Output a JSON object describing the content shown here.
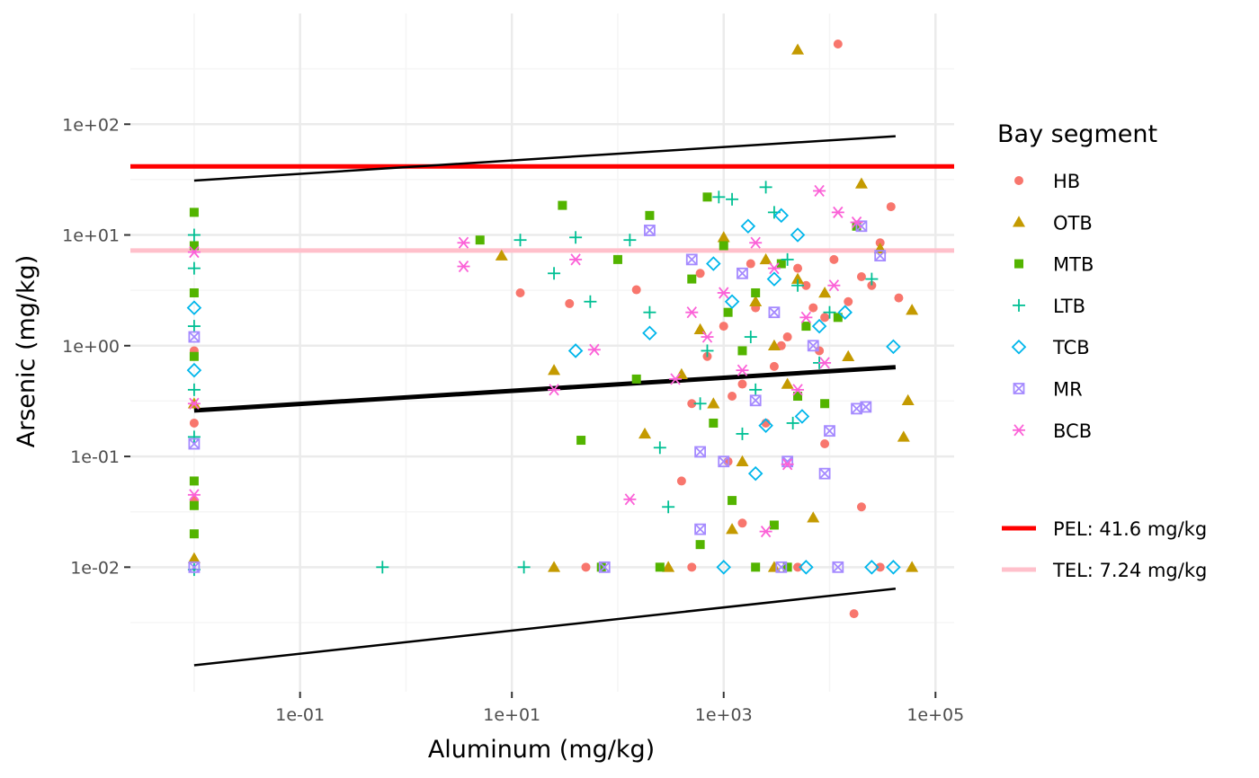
{
  "chart_data": {
    "type": "scatter",
    "xlabel": "Aluminum (mg/kg)",
    "ylabel": "Arsenic (mg/kg)",
    "x_scale": "log10",
    "y_scale": "log10",
    "xlim": [
      0.0025,
      150000
    ],
    "ylim": [
      0.00075,
      1000
    ],
    "x_ticks": [
      {
        "value": 0.1,
        "label": "1e-01"
      },
      {
        "value": 10,
        "label": "1e+01"
      },
      {
        "value": 1000,
        "label": "1e+03"
      },
      {
        "value": 100000,
        "label": "1e+05"
      }
    ],
    "y_ticks": [
      {
        "value": 0.01,
        "label": "1e-02"
      },
      {
        "value": 0.1,
        "label": "1e-01"
      },
      {
        "value": 1,
        "label": "1e+00"
      },
      {
        "value": 10,
        "label": "1e+01"
      },
      {
        "value": 100,
        "label": "1e+02"
      }
    ],
    "grid": true,
    "legend_position": "right",
    "legend_title": "Bay segment",
    "series": [
      {
        "name": "HB",
        "color": "#F8766D",
        "shape": "circle"
      },
      {
        "name": "OTB",
        "color": "#C49A00",
        "shape": "triangle"
      },
      {
        "name": "MTB",
        "color": "#53B400",
        "shape": "square"
      },
      {
        "name": "LTB",
        "color": "#00C094",
        "shape": "plus"
      },
      {
        "name": "TCB",
        "color": "#00B6EB",
        "shape": "diamond"
      },
      {
        "name": "MR",
        "color": "#A58AFF",
        "shape": "boxx"
      },
      {
        "name": "BCB",
        "color": "#FB61D7",
        "shape": "asterisk"
      }
    ],
    "reference_lines": [
      {
        "label": "PEL: 41.6 mg/kg",
        "y": 41.6,
        "color": "#FF0000"
      },
      {
        "label": "TEL: 7.24 mg/kg",
        "y": 7.24,
        "color": "#FFC0CB"
      }
    ],
    "regression": {
      "x_range": [
        0.01,
        42000
      ],
      "fit": [
        0.26,
        0.64
      ],
      "upper": [
        31,
        78
      ],
      "lower": [
        0.0013,
        0.0064
      ]
    },
    "points": [
      {
        "s": "HB",
        "x": 12000,
        "y": 530
      },
      {
        "s": "OTB",
        "x": 5000,
        "y": 470
      },
      {
        "s": "HB",
        "x": 38000,
        "y": 18
      },
      {
        "s": "HB",
        "x": 30000,
        "y": 8.5
      },
      {
        "s": "HB",
        "x": 20000,
        "y": 4.2
      },
      {
        "s": "HB",
        "x": 15000,
        "y": 2.5
      },
      {
        "s": "HB",
        "x": 9000,
        "y": 1.8
      },
      {
        "s": "HB",
        "x": 6000,
        "y": 3.5
      },
      {
        "s": "HB",
        "x": 4000,
        "y": 1.2
      },
      {
        "s": "HB",
        "x": 3000,
        "y": 0.65
      },
      {
        "s": "HB",
        "x": 2000,
        "y": 2.2
      },
      {
        "s": "HB",
        "x": 1500,
        "y": 0.45
      },
      {
        "s": "HB",
        "x": 1000,
        "y": 1.5
      },
      {
        "s": "HB",
        "x": 700,
        "y": 0.8
      },
      {
        "s": "HB",
        "x": 500,
        "y": 0.3
      },
      {
        "s": "HB",
        "x": 400,
        "y": 0.06
      },
      {
        "s": "HB",
        "x": 12,
        "y": 3.0
      },
      {
        "s": "HB",
        "x": 35,
        "y": 2.4
      },
      {
        "s": "HB",
        "x": 150,
        "y": 3.2
      },
      {
        "s": "HB",
        "x": 1500,
        "y": 0.025
      },
      {
        "s": "HB",
        "x": 20000,
        "y": 0.035
      },
      {
        "s": "HB",
        "x": 17000,
        "y": 0.0038
      },
      {
        "s": "HB",
        "x": 9000,
        "y": 0.13
      },
      {
        "s": "HB",
        "x": 2500,
        "y": 0.2
      },
      {
        "s": "HB",
        "x": 5000,
        "y": 5.0
      },
      {
        "s": "HB",
        "x": 8000,
        "y": 0.9
      },
      {
        "s": "HB",
        "x": 25000,
        "y": 3.5
      },
      {
        "s": "HB",
        "x": 11000,
        "y": 6.0
      },
      {
        "s": "HB",
        "x": 3500,
        "y": 1.0
      },
      {
        "s": "HB",
        "x": 1800,
        "y": 5.5
      },
      {
        "s": "HB",
        "x": 1200,
        "y": 0.35
      },
      {
        "s": "HB",
        "x": 45000,
        "y": 2.7
      },
      {
        "s": "HB",
        "x": 600,
        "y": 4.5
      },
      {
        "s": "HB",
        "x": 0.01,
        "y": 0.9
      },
      {
        "s": "HB",
        "x": 0.01,
        "y": 0.2
      },
      {
        "s": "HB",
        "x": 0.01,
        "y": 0.04
      },
      {
        "s": "HB",
        "x": 50,
        "y": 0.01
      },
      {
        "s": "HB",
        "x": 500,
        "y": 0.01
      },
      {
        "s": "HB",
        "x": 5000,
        "y": 0.01
      },
      {
        "s": "HB",
        "x": 30000,
        "y": 0.01
      },
      {
        "s": "HB",
        "x": 1100,
        "y": 0.09
      },
      {
        "s": "HB",
        "x": 7000,
        "y": 2.2
      },
      {
        "s": "OTB",
        "x": 20000,
        "y": 29
      },
      {
        "s": "OTB",
        "x": 8,
        "y": 6.5
      },
      {
        "s": "OTB",
        "x": 0.01,
        "y": 0.012
      },
      {
        "s": "OTB",
        "x": 25,
        "y": 0.6
      },
      {
        "s": "OTB",
        "x": 180,
        "y": 0.16
      },
      {
        "s": "OTB",
        "x": 3000,
        "y": 1.0
      },
      {
        "s": "OTB",
        "x": 1000,
        "y": 9.5
      },
      {
        "s": "OTB",
        "x": 5000,
        "y": 4.0
      },
      {
        "s": "OTB",
        "x": 15000,
        "y": 0.8
      },
      {
        "s": "OTB",
        "x": 55000,
        "y": 0.32
      },
      {
        "s": "OTB",
        "x": 50000,
        "y": 0.15
      },
      {
        "s": "OTB",
        "x": 30000,
        "y": 7.5
      },
      {
        "s": "OTB",
        "x": 800,
        "y": 0.3
      },
      {
        "s": "OTB",
        "x": 1200,
        "y": 0.022
      },
      {
        "s": "OTB",
        "x": 7000,
        "y": 0.028
      },
      {
        "s": "OTB",
        "x": 2000,
        "y": 2.5
      },
      {
        "s": "OTB",
        "x": 600,
        "y": 1.4
      },
      {
        "s": "OTB",
        "x": 400,
        "y": 0.55
      },
      {
        "s": "OTB",
        "x": 9000,
        "y": 3.0
      },
      {
        "s": "OTB",
        "x": 4000,
        "y": 0.45
      },
      {
        "s": "OTB",
        "x": 25,
        "y": 0.01
      },
      {
        "s": "OTB",
        "x": 300,
        "y": 0.01
      },
      {
        "s": "OTB",
        "x": 3000,
        "y": 0.01
      },
      {
        "s": "OTB",
        "x": 60000,
        "y": 0.01
      },
      {
        "s": "OTB",
        "x": 0.01,
        "y": 0.3
      },
      {
        "s": "OTB",
        "x": 60000,
        "y": 2.1
      },
      {
        "s": "OTB",
        "x": 1500,
        "y": 0.09
      },
      {
        "s": "OTB",
        "x": 2500,
        "y": 6.0
      },
      {
        "s": "MTB",
        "x": 0.01,
        "y": 16
      },
      {
        "s": "MTB",
        "x": 0.01,
        "y": 8
      },
      {
        "s": "MTB",
        "x": 0.01,
        "y": 3
      },
      {
        "s": "MTB",
        "x": 0.01,
        "y": 0.8
      },
      {
        "s": "MTB",
        "x": 0.01,
        "y": 0.06
      },
      {
        "s": "MTB",
        "x": 0.01,
        "y": 0.02
      },
      {
        "s": "MTB",
        "x": 0.01,
        "y": 0.036
      },
      {
        "s": "MTB",
        "x": 30,
        "y": 18.5
      },
      {
        "s": "MTB",
        "x": 5,
        "y": 9.0
      },
      {
        "s": "MTB",
        "x": 45,
        "y": 0.14
      },
      {
        "s": "MTB",
        "x": 200,
        "y": 15
      },
      {
        "s": "MTB",
        "x": 700,
        "y": 22
      },
      {
        "s": "MTB",
        "x": 1000,
        "y": 8.0
      },
      {
        "s": "MTB",
        "x": 1200,
        "y": 0.04
      },
      {
        "s": "MTB",
        "x": 600,
        "y": 0.016
      },
      {
        "s": "MTB",
        "x": 3000,
        "y": 0.024
      },
      {
        "s": "MTB",
        "x": 2000,
        "y": 3.0
      },
      {
        "s": "MTB",
        "x": 1500,
        "y": 0.9
      },
      {
        "s": "MTB",
        "x": 800,
        "y": 0.2
      },
      {
        "s": "MTB",
        "x": 500,
        "y": 4.0
      },
      {
        "s": "MTB",
        "x": 150,
        "y": 0.5
      },
      {
        "s": "MTB",
        "x": 100,
        "y": 6.0
      },
      {
        "s": "MTB",
        "x": 12000,
        "y": 1.8
      },
      {
        "s": "MTB",
        "x": 5000,
        "y": 0.35
      },
      {
        "s": "MTB",
        "x": 9000,
        "y": 0.3
      },
      {
        "s": "MTB",
        "x": 18000,
        "y": 12
      },
      {
        "s": "MTB",
        "x": 70,
        "y": 0.01
      },
      {
        "s": "MTB",
        "x": 250,
        "y": 0.01
      },
      {
        "s": "MTB",
        "x": 2000,
        "y": 0.01
      },
      {
        "s": "MTB",
        "x": 4000,
        "y": 0.01
      },
      {
        "s": "MTB",
        "x": 6000,
        "y": 1.5
      },
      {
        "s": "MTB",
        "x": 1100,
        "y": 2.0
      },
      {
        "s": "MTB",
        "x": 3500,
        "y": 5.5
      },
      {
        "s": "LTB",
        "x": 0.01,
        "y": 10
      },
      {
        "s": "LTB",
        "x": 0.01,
        "y": 5
      },
      {
        "s": "LTB",
        "x": 0.01,
        "y": 1.5
      },
      {
        "s": "LTB",
        "x": 0.01,
        "y": 0.4
      },
      {
        "s": "LTB",
        "x": 0.01,
        "y": 0.15
      },
      {
        "s": "LTB",
        "x": 0.01,
        "y": 0.0095
      },
      {
        "s": "LTB",
        "x": 0.6,
        "y": 0.01
      },
      {
        "s": "LTB",
        "x": 13,
        "y": 0.01
      },
      {
        "s": "LTB",
        "x": 12,
        "y": 9.0
      },
      {
        "s": "LTB",
        "x": 25,
        "y": 4.5
      },
      {
        "s": "LTB",
        "x": 40,
        "y": 9.5
      },
      {
        "s": "LTB",
        "x": 55,
        "y": 2.5
      },
      {
        "s": "LTB",
        "x": 130,
        "y": 9.0
      },
      {
        "s": "LTB",
        "x": 200,
        "y": 2.0
      },
      {
        "s": "LTB",
        "x": 250,
        "y": 0.12
      },
      {
        "s": "LTB",
        "x": 300,
        "y": 0.035
      },
      {
        "s": "LTB",
        "x": 900,
        "y": 22
      },
      {
        "s": "LTB",
        "x": 1200,
        "y": 21
      },
      {
        "s": "LTB",
        "x": 2500,
        "y": 27
      },
      {
        "s": "LTB",
        "x": 3000,
        "y": 16
      },
      {
        "s": "LTB",
        "x": 1500,
        "y": 0.16
      },
      {
        "s": "LTB",
        "x": 700,
        "y": 0.9
      },
      {
        "s": "LTB",
        "x": 5000,
        "y": 3.5
      },
      {
        "s": "LTB",
        "x": 8000,
        "y": 0.7
      },
      {
        "s": "LTB",
        "x": 2000,
        "y": 0.4
      },
      {
        "s": "LTB",
        "x": 600,
        "y": 0.3
      },
      {
        "s": "LTB",
        "x": 4000,
        "y": 6.0
      },
      {
        "s": "LTB",
        "x": 10000,
        "y": 2.0
      },
      {
        "s": "LTB",
        "x": 25000,
        "y": 4.0
      },
      {
        "s": "LTB",
        "x": 1800,
        "y": 1.2
      },
      {
        "s": "LTB",
        "x": 4500,
        "y": 0.2
      },
      {
        "s": "TCB",
        "x": 0.01,
        "y": 2.2
      },
      {
        "s": "TCB",
        "x": 0.01,
        "y": 0.6
      },
      {
        "s": "TCB",
        "x": 40,
        "y": 0.9
      },
      {
        "s": "TCB",
        "x": 200,
        "y": 1.3
      },
      {
        "s": "TCB",
        "x": 1700,
        "y": 12
      },
      {
        "s": "TCB",
        "x": 3500,
        "y": 15
      },
      {
        "s": "TCB",
        "x": 5000,
        "y": 10
      },
      {
        "s": "TCB",
        "x": 2000,
        "y": 0.07
      },
      {
        "s": "TCB",
        "x": 2500,
        "y": 0.19
      },
      {
        "s": "TCB",
        "x": 5500,
        "y": 0.23
      },
      {
        "s": "TCB",
        "x": 3000,
        "y": 4.0
      },
      {
        "s": "TCB",
        "x": 1200,
        "y": 2.5
      },
      {
        "s": "TCB",
        "x": 8000,
        "y": 1.5
      },
      {
        "s": "TCB",
        "x": 40000,
        "y": 0.98
      },
      {
        "s": "TCB",
        "x": 14000,
        "y": 2.0
      },
      {
        "s": "TCB",
        "x": 800,
        "y": 5.5
      },
      {
        "s": "TCB",
        "x": 1000,
        "y": 0.01
      },
      {
        "s": "TCB",
        "x": 6000,
        "y": 0.01
      },
      {
        "s": "TCB",
        "x": 25000,
        "y": 0.01
      },
      {
        "s": "TCB",
        "x": 40000,
        "y": 0.01
      },
      {
        "s": "MR",
        "x": 0.01,
        "y": 1.2
      },
      {
        "s": "MR",
        "x": 0.01,
        "y": 0.13
      },
      {
        "s": "MR",
        "x": 0.01,
        "y": 0.01
      },
      {
        "s": "MR",
        "x": 75,
        "y": 0.01
      },
      {
        "s": "MR",
        "x": 200,
        "y": 11
      },
      {
        "s": "MR",
        "x": 500,
        "y": 6.0
      },
      {
        "s": "MR",
        "x": 600,
        "y": 0.11
      },
      {
        "s": "MR",
        "x": 600,
        "y": 0.022
      },
      {
        "s": "MR",
        "x": 9000,
        "y": 0.07
      },
      {
        "s": "MR",
        "x": 10000,
        "y": 0.17
      },
      {
        "s": "MR",
        "x": 18000,
        "y": 0.27
      },
      {
        "s": "MR",
        "x": 22000,
        "y": 0.28
      },
      {
        "s": "MR",
        "x": 2000,
        "y": 0.32
      },
      {
        "s": "MR",
        "x": 3000,
        "y": 2.0
      },
      {
        "s": "MR",
        "x": 1000,
        "y": 0.09
      },
      {
        "s": "MR",
        "x": 4000,
        "y": 0.09
      },
      {
        "s": "MR",
        "x": 7000,
        "y": 1.0
      },
      {
        "s": "MR",
        "x": 1500,
        "y": 4.5
      },
      {
        "s": "MR",
        "x": 20000,
        "y": 12
      },
      {
        "s": "MR",
        "x": 30000,
        "y": 6.5
      },
      {
        "s": "MR",
        "x": 12000,
        "y": 0.01
      },
      {
        "s": "MR",
        "x": 3500,
        "y": 0.01
      },
      {
        "s": "BCB",
        "x": 0.01,
        "y": 7
      },
      {
        "s": "BCB",
        "x": 0.01,
        "y": 0.3
      },
      {
        "s": "BCB",
        "x": 0.01,
        "y": 0.045
      },
      {
        "s": "BCB",
        "x": 3.5,
        "y": 8.5
      },
      {
        "s": "BCB",
        "x": 3.5,
        "y": 5.2
      },
      {
        "s": "BCB",
        "x": 40,
        "y": 6.0
      },
      {
        "s": "BCB",
        "x": 60,
        "y": 0.92
      },
      {
        "s": "BCB",
        "x": 25,
        "y": 0.4
      },
      {
        "s": "BCB",
        "x": 130,
        "y": 0.041
      },
      {
        "s": "BCB",
        "x": 350,
        "y": 0.5
      },
      {
        "s": "BCB",
        "x": 500,
        "y": 2.0
      },
      {
        "s": "BCB",
        "x": 2500,
        "y": 0.021
      },
      {
        "s": "BCB",
        "x": 8000,
        "y": 25
      },
      {
        "s": "BCB",
        "x": 12000,
        "y": 16
      },
      {
        "s": "BCB",
        "x": 18000,
        "y": 13
      },
      {
        "s": "BCB",
        "x": 4000,
        "y": 0.085
      },
      {
        "s": "BCB",
        "x": 1000,
        "y": 3.0
      },
      {
        "s": "BCB",
        "x": 1500,
        "y": 0.6
      },
      {
        "s": "BCB",
        "x": 3000,
        "y": 5.0
      },
      {
        "s": "BCB",
        "x": 6000,
        "y": 1.8
      },
      {
        "s": "BCB",
        "x": 9000,
        "y": 0.7
      },
      {
        "s": "BCB",
        "x": 700,
        "y": 1.2
      },
      {
        "s": "BCB",
        "x": 2000,
        "y": 8.5
      },
      {
        "s": "BCB",
        "x": 5000,
        "y": 0.4
      },
      {
        "s": "BCB",
        "x": 11000,
        "y": 3.5
      }
    ]
  }
}
